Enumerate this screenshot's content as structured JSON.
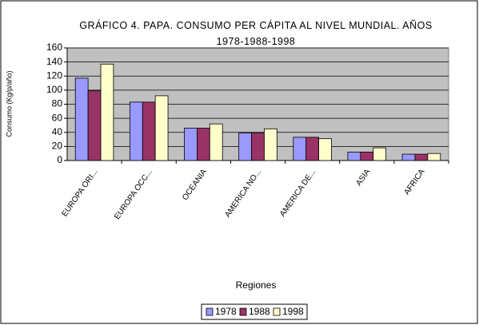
{
  "chart_data": {
    "type": "bar",
    "title": "GRÁFICO 4. PAPA. CONSUMO PER CÁPITA AL NIVEL MUNDIAL. AÑOS 1978-1988-1998",
    "x_label": "Regiones",
    "y_label": "Consumo (Kg/p/año)",
    "categories": [
      "EUROPA ORI...",
      "EUROPA OCC...",
      "OCEANIA",
      "AMERICA NO...",
      "AMERICA DE...",
      "ASIA",
      "AFRICA"
    ],
    "series": [
      {
        "name": "1978",
        "color": "#9999ff",
        "values": [
          117,
          83,
          46,
          39,
          33,
          12,
          9
        ]
      },
      {
        "name": "1988",
        "color": "#993366",
        "values": [
          99,
          83,
          46,
          39,
          33,
          12,
          9
        ]
      },
      {
        "name": "1998",
        "color": "#ffffcc",
        "values": [
          137,
          92,
          52,
          45,
          31,
          18,
          10
        ]
      }
    ],
    "ylim": [
      0,
      160
    ],
    "yticks": [
      0,
      20,
      40,
      60,
      80,
      100,
      120,
      140,
      160
    ],
    "grid": true,
    "legend": "bottom"
  }
}
